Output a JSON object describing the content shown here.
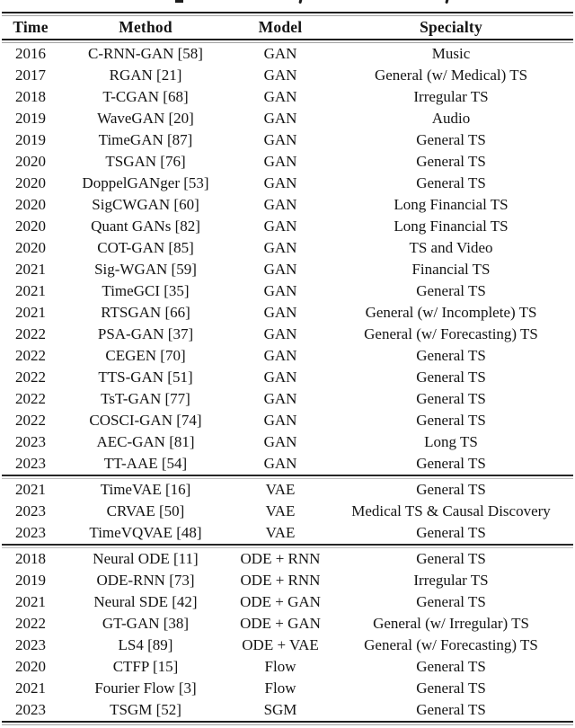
{
  "page": {
    "background": "#ffffff",
    "text_color": "#141414",
    "rule_color": "#1f1f1f"
  },
  "table": {
    "headers": [
      "Time",
      "Method",
      "Model",
      "Specialty"
    ],
    "column_keys": [
      "time",
      "method",
      "model",
      "specialty"
    ],
    "sections": [
      {
        "name": "gan-models",
        "rows": [
          {
            "time": "2016",
            "method": "C-RNN-GAN [58]",
            "model": "GAN",
            "specialty": "Music"
          },
          {
            "time": "2017",
            "method": "RGAN [21]",
            "model": "GAN",
            "specialty": "General (w/ Medical) TS"
          },
          {
            "time": "2018",
            "method": "T-CGAN [68]",
            "model": "GAN",
            "specialty": "Irregular TS"
          },
          {
            "time": "2019",
            "method": "WaveGAN [20]",
            "model": "GAN",
            "specialty": "Audio"
          },
          {
            "time": "2019",
            "method": "TimeGAN [87]",
            "model": "GAN",
            "specialty": "General TS"
          },
          {
            "time": "2020",
            "method": "TSGAN [76]",
            "model": "GAN",
            "specialty": "General TS"
          },
          {
            "time": "2020",
            "method": "DoppelGANger [53]",
            "model": "GAN",
            "specialty": "General TS"
          },
          {
            "time": "2020",
            "method": "SigCWGAN [60]",
            "model": "GAN",
            "specialty": "Long Financial TS"
          },
          {
            "time": "2020",
            "method": "Quant GANs [82]",
            "model": "GAN",
            "specialty": "Long Financial TS"
          },
          {
            "time": "2020",
            "method": "COT-GAN [85]",
            "model": "GAN",
            "specialty": "TS and Video"
          },
          {
            "time": "2021",
            "method": "Sig-WGAN [59]",
            "model": "GAN",
            "specialty": "Financial TS"
          },
          {
            "time": "2021",
            "method": "TimeGCI [35]",
            "model": "GAN",
            "specialty": "General TS"
          },
          {
            "time": "2021",
            "method": "RTSGAN [66]",
            "model": "GAN",
            "specialty": "General (w/ Incomplete) TS"
          },
          {
            "time": "2022",
            "method": "PSA-GAN [37]",
            "model": "GAN",
            "specialty": "General (w/ Forecasting) TS"
          },
          {
            "time": "2022",
            "method": "CEGEN [70]",
            "model": "GAN",
            "specialty": "General TS"
          },
          {
            "time": "2022",
            "method": "TTS-GAN [51]",
            "model": "GAN",
            "specialty": "General TS"
          },
          {
            "time": "2022",
            "method": "TsT-GAN [77]",
            "model": "GAN",
            "specialty": "General TS"
          },
          {
            "time": "2022",
            "method": "COSCI-GAN [74]",
            "model": "GAN",
            "specialty": "General TS"
          },
          {
            "time": "2023",
            "method": "AEC-GAN [81]",
            "model": "GAN",
            "specialty": "Long TS"
          },
          {
            "time": "2023",
            "method": "TT-AAE [54]",
            "model": "GAN",
            "specialty": "General TS"
          }
        ]
      },
      {
        "name": "vae-models",
        "rows": [
          {
            "time": "2021",
            "method": "TimeVAE [16]",
            "model": "VAE",
            "specialty": "General TS"
          },
          {
            "time": "2023",
            "method": "CRVAE [50]",
            "model": "VAE",
            "specialty": "Medical TS & Causal Discovery"
          },
          {
            "time": "2023",
            "method": "TimeVQVAE [48]",
            "model": "VAE",
            "specialty": "General TS"
          }
        ]
      },
      {
        "name": "ode-flow-sgm-models",
        "rows": [
          {
            "time": "2018",
            "method": "Neural ODE [11]",
            "model": "ODE + RNN",
            "specialty": "General TS"
          },
          {
            "time": "2019",
            "method": "ODE-RNN [73]",
            "model": "ODE + RNN",
            "specialty": "Irregular TS"
          },
          {
            "time": "2021",
            "method": "Neural SDE [42]",
            "model": "ODE + GAN",
            "specialty": "General TS"
          },
          {
            "time": "2022",
            "method": "GT-GAN [38]",
            "model": "ODE + GAN",
            "specialty": "General (w/ Irregular) TS"
          },
          {
            "time": "2023",
            "method": "LS4 [89]",
            "model": "ODE + VAE",
            "specialty": "General (w/ Forecasting) TS"
          },
          {
            "time": "2020",
            "method": "CTFP [15]",
            "model": "Flow",
            "specialty": "General TS"
          },
          {
            "time": "2021",
            "method": "Fourier Flow [3]",
            "model": "Flow",
            "specialty": "General TS"
          },
          {
            "time": "2023",
            "method": "TSGM [52]",
            "model": "SGM",
            "specialty": "General TS"
          }
        ]
      }
    ]
  }
}
